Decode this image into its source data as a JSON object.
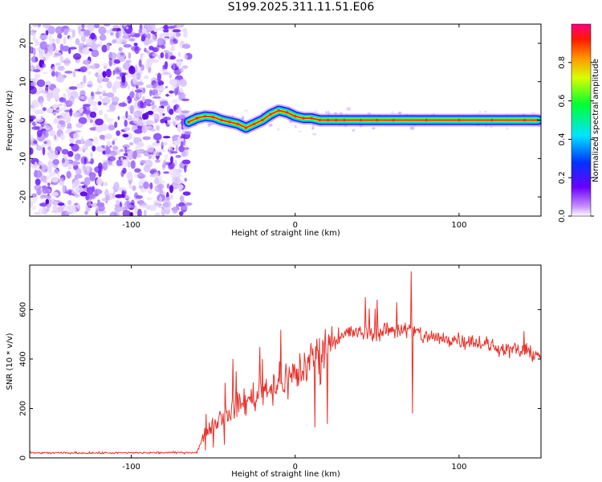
{
  "title": "S199.2025.311.11.51.E06",
  "chart_data": [
    {
      "type": "heatmap",
      "xlabel": "Height of straight line (km)",
      "ylabel": "Frequency (Hz)",
      "xlim": [
        -162,
        150
      ],
      "ylim": [
        -25,
        25
      ],
      "xticks": [
        -100,
        0,
        100
      ],
      "yticks": [
        -20,
        -10,
        0,
        10,
        20
      ],
      "noise_region_x": [
        -162,
        -65
      ],
      "ridge": {
        "x": [
          -65,
          -60,
          -55,
          -50,
          -45,
          -40,
          -35,
          -30,
          -25,
          -20,
          -15,
          -10,
          -5,
          0,
          5,
          10,
          15,
          20,
          25,
          30,
          40,
          50,
          60,
          80,
          100,
          120,
          140,
          148
        ],
        "y": [
          -0.5,
          0.5,
          1.0,
          0.8,
          0.0,
          -0.5,
          -1.0,
          -2.0,
          -1.0,
          0.0,
          1.5,
          2.5,
          2.0,
          1.0,
          0.5,
          0.5,
          0.0,
          0.0,
          0.0,
          0.0,
          0.0,
          0.0,
          0.0,
          0.0,
          0.0,
          0.0,
          0.0,
          0.0
        ]
      },
      "colorbar": {
        "label": "Normalized spectral amplitude",
        "ticks": [
          "0.0",
          "0.2",
          "0.4",
          "0.6",
          "0.8"
        ],
        "range": [
          0,
          1
        ]
      }
    },
    {
      "type": "line",
      "xlabel": "Height of straight line (km)",
      "ylabel": "SNR (10 * v/v)",
      "xlim": [
        -162,
        150
      ],
      "ylim": [
        0,
        780
      ],
      "xticks": [
        -100,
        0,
        100
      ],
      "yticks": [
        0,
        200,
        400,
        600
      ],
      "color": "#e8312a",
      "envelope": {
        "x": [
          -162,
          -110,
          -60,
          -55,
          -50,
          -45,
          -40,
          -35,
          -30,
          -25,
          -20,
          -15,
          -10,
          -5,
          0,
          5,
          10,
          15,
          20,
          25,
          30,
          35,
          40,
          50,
          60,
          70,
          80,
          90,
          100,
          110,
          120,
          130,
          140,
          150
        ],
        "y": [
          20,
          20,
          22,
          100,
          140,
          170,
          190,
          210,
          230,
          250,
          270,
          290,
          300,
          320,
          340,
          360,
          400,
          430,
          460,
          480,
          500,
          510,
          500,
          510,
          520,
          520,
          490,
          480,
          480,
          470,
          450,
          440,
          430,
          420
        ]
      },
      "spikes": [
        {
          "x": 43,
          "y": 650
        },
        {
          "x": 50,
          "y": 640
        },
        {
          "x": 62,
          "y": 630
        },
        {
          "x": 71,
          "y": 755
        },
        {
          "x": 71.5,
          "y": 180
        },
        {
          "x": -38,
          "y": 400
        },
        {
          "x": -20,
          "y": 400
        }
      ]
    }
  ]
}
